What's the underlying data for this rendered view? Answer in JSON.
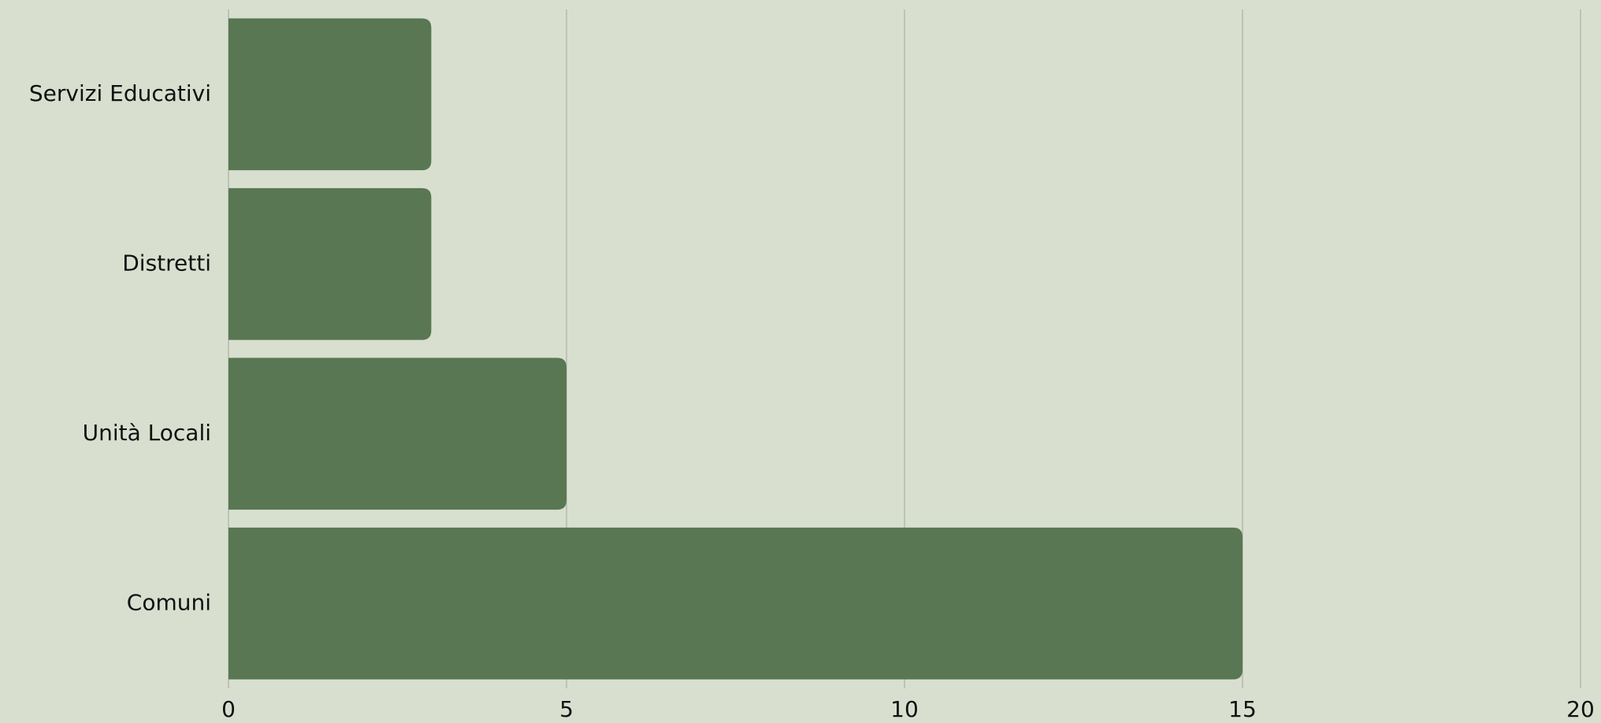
{
  "chart_data": {
    "type": "barh",
    "categories": [
      "Servizi Educativi",
      "Distretti",
      "Unità Locali",
      "Comuni"
    ],
    "values": [
      3,
      3,
      5,
      15
    ],
    "color": "#587752",
    "xlim": [
      0,
      20
    ],
    "xticks": [
      0,
      5,
      10,
      15,
      20
    ],
    "grid": true
  }
}
